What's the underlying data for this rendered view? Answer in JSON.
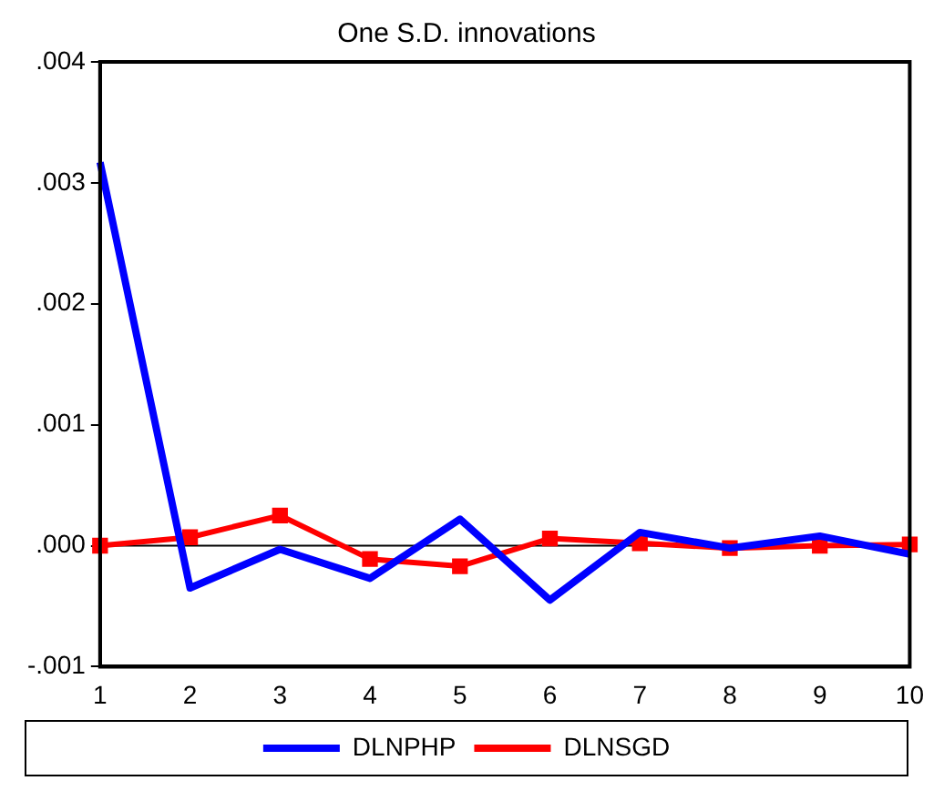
{
  "chart_data": {
    "type": "line",
    "title": "One S.D. innovations",
    "categories": [
      "1",
      "2",
      "3",
      "4",
      "5",
      "6",
      "7",
      "8",
      "9",
      "10"
    ],
    "series": [
      {
        "name": "DLNPHP",
        "color": "#0000ff",
        "marker": "none",
        "values": [
          0.00317,
          -0.00035,
          -3e-05,
          -0.00027,
          0.00022,
          -0.00045,
          0.00011,
          -2e-05,
          8e-05,
          -7e-05
        ]
      },
      {
        "name": "DLNSGD",
        "color": "#ff0000",
        "marker": "square",
        "values": [
          0,
          7e-05,
          0.00025,
          -0.00011,
          -0.00017,
          6e-05,
          2e-05,
          -2e-05,
          0,
          1e-05
        ]
      }
    ],
    "ylim": [
      -0.001,
      0.004
    ],
    "yticks": [
      {
        "value": -0.001,
        "label": "-.001"
      },
      {
        "value": 0,
        "label": ".000"
      },
      {
        "value": 0.001,
        "label": ".001"
      },
      {
        "value": 0.002,
        "label": ".002"
      },
      {
        "value": 0.003,
        "label": ".003"
      },
      {
        "value": 0.004,
        "label": ".004"
      }
    ],
    "ref_lines": [
      {
        "axis": "y",
        "value": 0,
        "color": "#000000"
      }
    ],
    "grid": false,
    "legend": "bottom",
    "line_style": "solid"
  }
}
